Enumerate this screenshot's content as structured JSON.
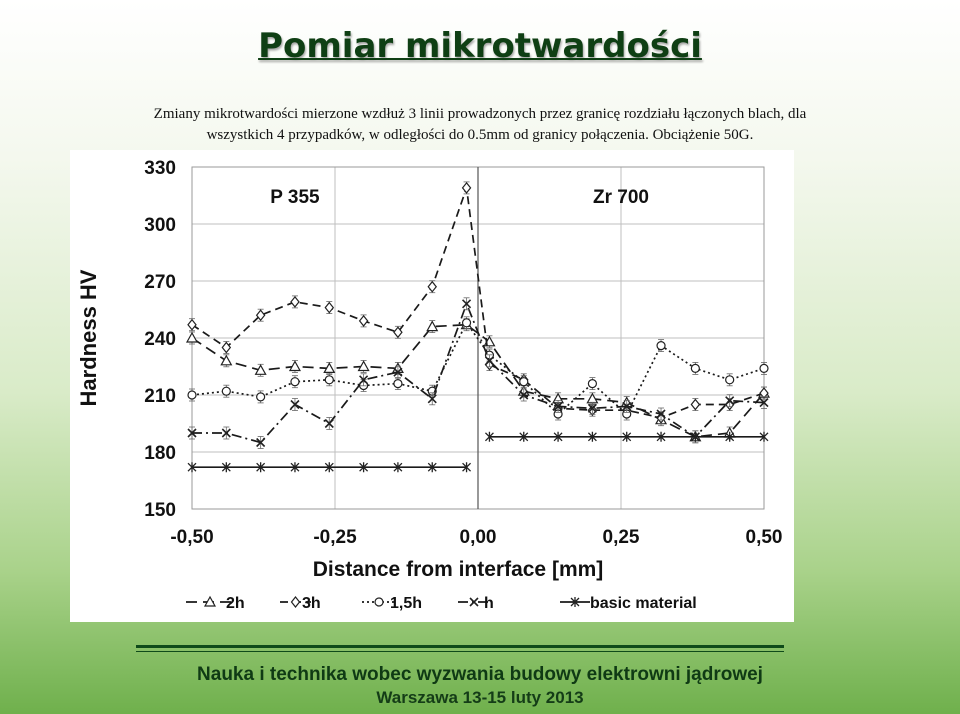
{
  "slide": {
    "title": "Pomiar mikrotwardości",
    "caption_line1": "Zmiany mikrotwardości mierzone wzdłuż 3 linii prowadzonych przez granicę rozdziału łączonych blach, dla",
    "caption_line2": "wszystkich 4 przypadków, w odległości do 0.5mm od granicy połączenia. Obciążenie 50G.",
    "footer_line1": "Nauka i technika wobec wyzwania budowy elektrowni jądrowej",
    "footer_line2": "Warszawa 13-15 luty 2013"
  },
  "chart_data": {
    "type": "line",
    "xlabel": "Distance from interface [mm]",
    "ylabel": "Hardness HV",
    "xlim": [
      -0.5,
      0.5
    ],
    "ylim": [
      150,
      330
    ],
    "xticks": [
      "-0,50",
      "-0,25",
      "0,00",
      "0,25",
      "0,50"
    ],
    "yticks": [
      "150",
      "180",
      "210",
      "240",
      "270",
      "300",
      "330"
    ],
    "annotations": [
      "P 355",
      "Zr 700"
    ],
    "legend_position": "bottom",
    "x": [
      -0.5,
      -0.44,
      -0.38,
      -0.32,
      -0.26,
      -0.2,
      -0.14,
      -0.08,
      -0.02,
      0.02,
      0.08,
      0.14,
      0.2,
      0.26,
      0.32,
      0.38,
      0.44,
      0.5
    ],
    "series": [
      {
        "name": "2h",
        "marker": "triangle",
        "dash": "long-dash",
        "values": [
          240,
          228,
          223,
          225,
          224,
          225,
          224,
          246,
          247,
          238,
          212,
          208,
          208,
          206,
          197,
          188,
          190,
          211
        ]
      },
      {
        "name": "3h",
        "marker": "diamond",
        "dash": "dash",
        "values": [
          247,
          235,
          252,
          259,
          256,
          249,
          243,
          267,
          319,
          226,
          218,
          203,
          202,
          202,
          198,
          205,
          205,
          211
        ]
      },
      {
        "name": "1,5h",
        "marker": "circle",
        "dash": "dot",
        "values": [
          210,
          212,
          209,
          217,
          218,
          215,
          216,
          212,
          248,
          231,
          217,
          200,
          216,
          200,
          236,
          224,
          218,
          224
        ]
      },
      {
        "name": "h",
        "marker": "x",
        "dash": "dash-dot",
        "values": [
          190,
          190,
          185,
          205,
          195,
          218,
          222,
          208,
          258,
          228,
          210,
          204,
          203,
          204,
          200,
          188,
          207,
          206
        ]
      },
      {
        "name": "basic material",
        "marker": "star",
        "dash": "solid",
        "values": [
          172,
          172,
          172,
          172,
          172,
          172,
          172,
          172,
          172,
          188,
          188,
          188,
          188,
          188,
          188,
          188,
          188,
          188
        ]
      }
    ]
  }
}
